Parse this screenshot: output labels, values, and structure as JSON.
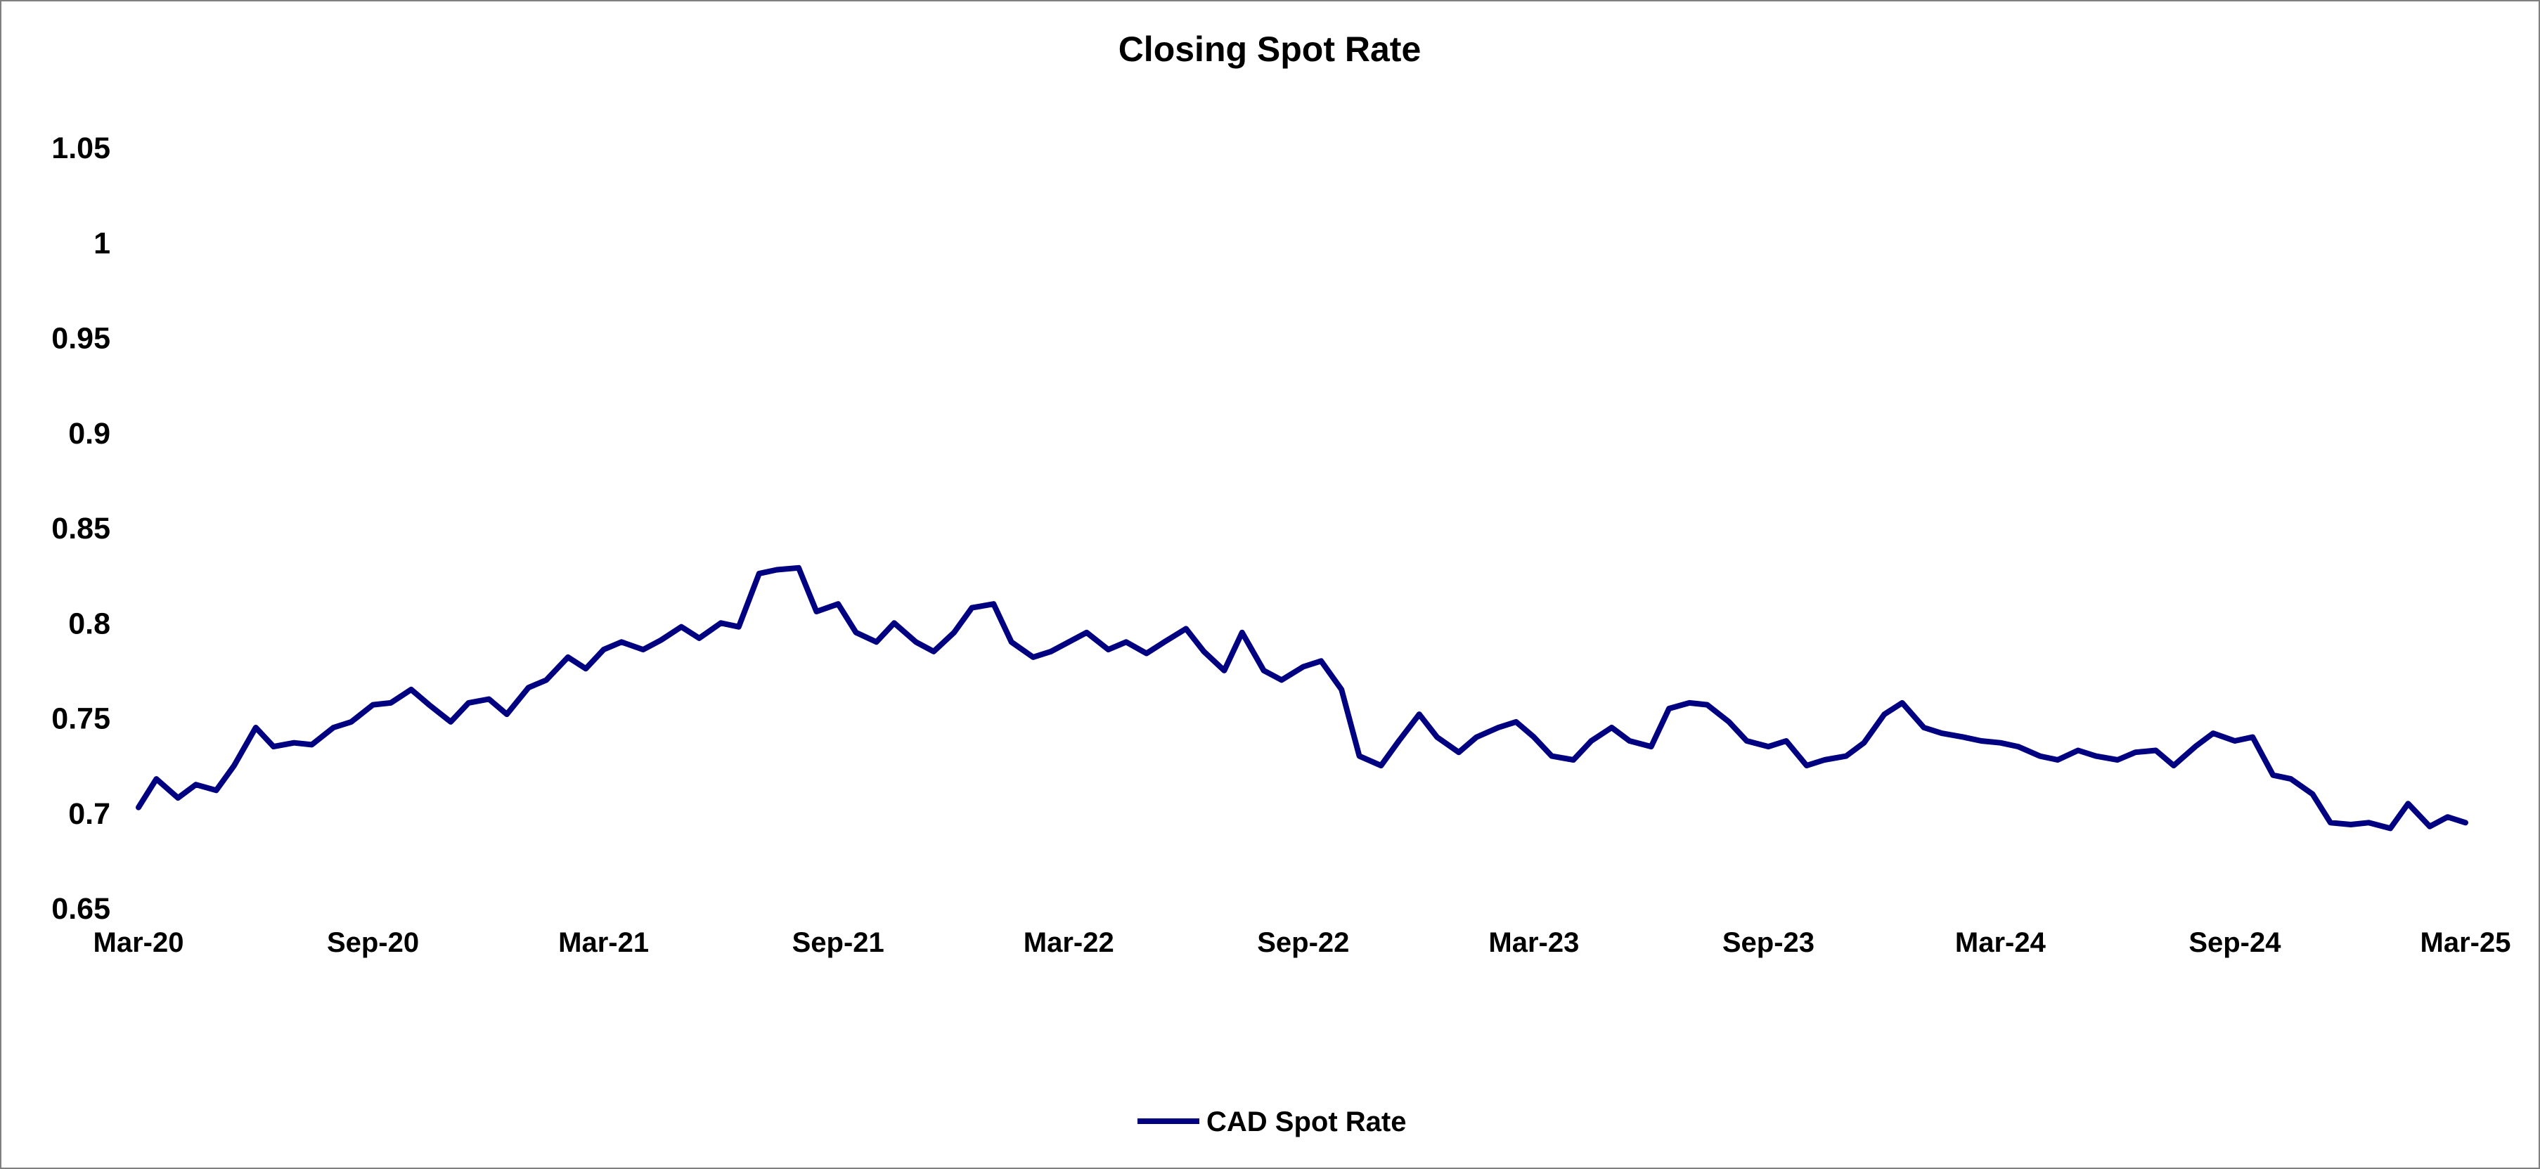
{
  "chart_data": {
    "type": "line",
    "title": "Closing Spot Rate",
    "xlabel": "",
    "ylabel": "",
    "ylim": [
      0.65,
      1.05
    ],
    "yticks": [
      0.65,
      0.7,
      0.75,
      0.8,
      0.85,
      0.9,
      0.95,
      1,
      1.05
    ],
    "ytick_labels": [
      "0.65",
      "0.7",
      "0.75",
      "0.8",
      "0.85",
      "0.9",
      "0.95",
      "1",
      "1.05"
    ],
    "xlim": [
      "2020-03",
      "2025-03"
    ],
    "xticks": [
      "2020-03",
      "2020-09",
      "2021-03",
      "2021-09",
      "2022-03",
      "2022-09",
      "2023-03",
      "2023-09",
      "2024-03",
      "2024-09",
      "2025-03"
    ],
    "xtick_labels": [
      "Mar-20",
      "Sep-20",
      "Mar-21",
      "Sep-21",
      "Mar-22",
      "Sep-22",
      "Mar-23",
      "Sep-23",
      "Mar-24",
      "Sep-24",
      "Mar-25"
    ],
    "grid": false,
    "legend": {
      "position": "bottom",
      "entries": [
        "CAD Spot Rate"
      ]
    },
    "series": [
      {
        "name": "CAD Spot Rate",
        "color": "#000080",
        "x": [
          "2020-03-01",
          "2020-03-15",
          "2020-04-01",
          "2020-04-15",
          "2020-05-01",
          "2020-05-15",
          "2020-06-01",
          "2020-06-15",
          "2020-07-01",
          "2020-07-15",
          "2020-08-01",
          "2020-08-15",
          "2020-09-01",
          "2020-09-15",
          "2020-10-01",
          "2020-10-15",
          "2020-11-01",
          "2020-11-15",
          "2020-12-01",
          "2020-12-15",
          "2021-01-01",
          "2021-01-15",
          "2021-02-01",
          "2021-02-15",
          "2021-03-01",
          "2021-03-15",
          "2021-04-01",
          "2021-04-15",
          "2021-05-01",
          "2021-05-15",
          "2021-06-01",
          "2021-06-15",
          "2021-07-01",
          "2021-07-15",
          "2021-08-01",
          "2021-08-15",
          "2021-09-01",
          "2021-09-15",
          "2021-10-01",
          "2021-10-15",
          "2021-11-01",
          "2021-11-15",
          "2021-12-01",
          "2021-12-15",
          "2022-01-01",
          "2022-01-15",
          "2022-02-01",
          "2022-02-15",
          "2022-03-01",
          "2022-03-15",
          "2022-04-01",
          "2022-04-15",
          "2022-05-01",
          "2022-05-15",
          "2022-06-01",
          "2022-06-15",
          "2022-07-01",
          "2022-07-15",
          "2022-08-01",
          "2022-08-15",
          "2022-09-01",
          "2022-09-15",
          "2022-10-01",
          "2022-10-15",
          "2022-11-01",
          "2022-11-15",
          "2022-12-01",
          "2022-12-15",
          "2023-01-01",
          "2023-01-15",
          "2023-02-01",
          "2023-02-15",
          "2023-03-01",
          "2023-03-15",
          "2023-04-01",
          "2023-04-15",
          "2023-05-01",
          "2023-05-15",
          "2023-06-01",
          "2023-06-15",
          "2023-07-01",
          "2023-07-15",
          "2023-08-01",
          "2023-08-15",
          "2023-09-01",
          "2023-09-15",
          "2023-10-01",
          "2023-10-15",
          "2023-11-01",
          "2023-11-15",
          "2023-12-01",
          "2023-12-15",
          "2024-01-01",
          "2024-01-15",
          "2024-02-01",
          "2024-02-15",
          "2024-03-01",
          "2024-03-15",
          "2024-04-01",
          "2024-04-15",
          "2024-05-01",
          "2024-05-15",
          "2024-06-01",
          "2024-06-15",
          "2024-07-01",
          "2024-07-15",
          "2024-08-01",
          "2024-08-15",
          "2024-09-01",
          "2024-09-15",
          "2024-10-01",
          "2024-10-15",
          "2024-11-01",
          "2024-11-15",
          "2024-12-01",
          "2024-12-15",
          "2025-01-01",
          "2025-01-15",
          "2025-02-01",
          "2025-02-15",
          "2025-03-01"
        ],
        "values": [
          0.703,
          0.718,
          0.708,
          0.715,
          0.712,
          0.725,
          0.745,
          0.735,
          0.737,
          0.736,
          0.745,
          0.748,
          0.757,
          0.758,
          0.765,
          0.757,
          0.748,
          0.758,
          0.76,
          0.752,
          0.766,
          0.77,
          0.782,
          0.776,
          0.786,
          0.79,
          0.786,
          0.791,
          0.798,
          0.792,
          0.8,
          0.798,
          0.826,
          0.828,
          0.829,
          0.806,
          0.81,
          0.795,
          0.79,
          0.8,
          0.79,
          0.785,
          0.795,
          0.808,
          0.81,
          0.79,
          0.782,
          0.785,
          0.79,
          0.795,
          0.786,
          0.79,
          0.784,
          0.79,
          0.797,
          0.785,
          0.775,
          0.795,
          0.775,
          0.77,
          0.777,
          0.78,
          0.765,
          0.73,
          0.725,
          0.738,
          0.752,
          0.74,
          0.732,
          0.74,
          0.745,
          0.748,
          0.74,
          0.73,
          0.728,
          0.738,
          0.745,
          0.738,
          0.735,
          0.755,
          0.758,
          0.757,
          0.748,
          0.738,
          0.735,
          0.738,
          0.725,
          0.728,
          0.73,
          0.737,
          0.752,
          0.758,
          0.745,
          0.742,
          0.74,
          0.738,
          0.737,
          0.735,
          0.73,
          0.728,
          0.733,
          0.73,
          0.728,
          0.732,
          0.733,
          0.725,
          0.735,
          0.742,
          0.738,
          0.74,
          0.72,
          0.718,
          0.71,
          0.695,
          0.694,
          0.695,
          0.692,
          0.705,
          0.693,
          0.698,
          0.695
        ]
      }
    ]
  }
}
